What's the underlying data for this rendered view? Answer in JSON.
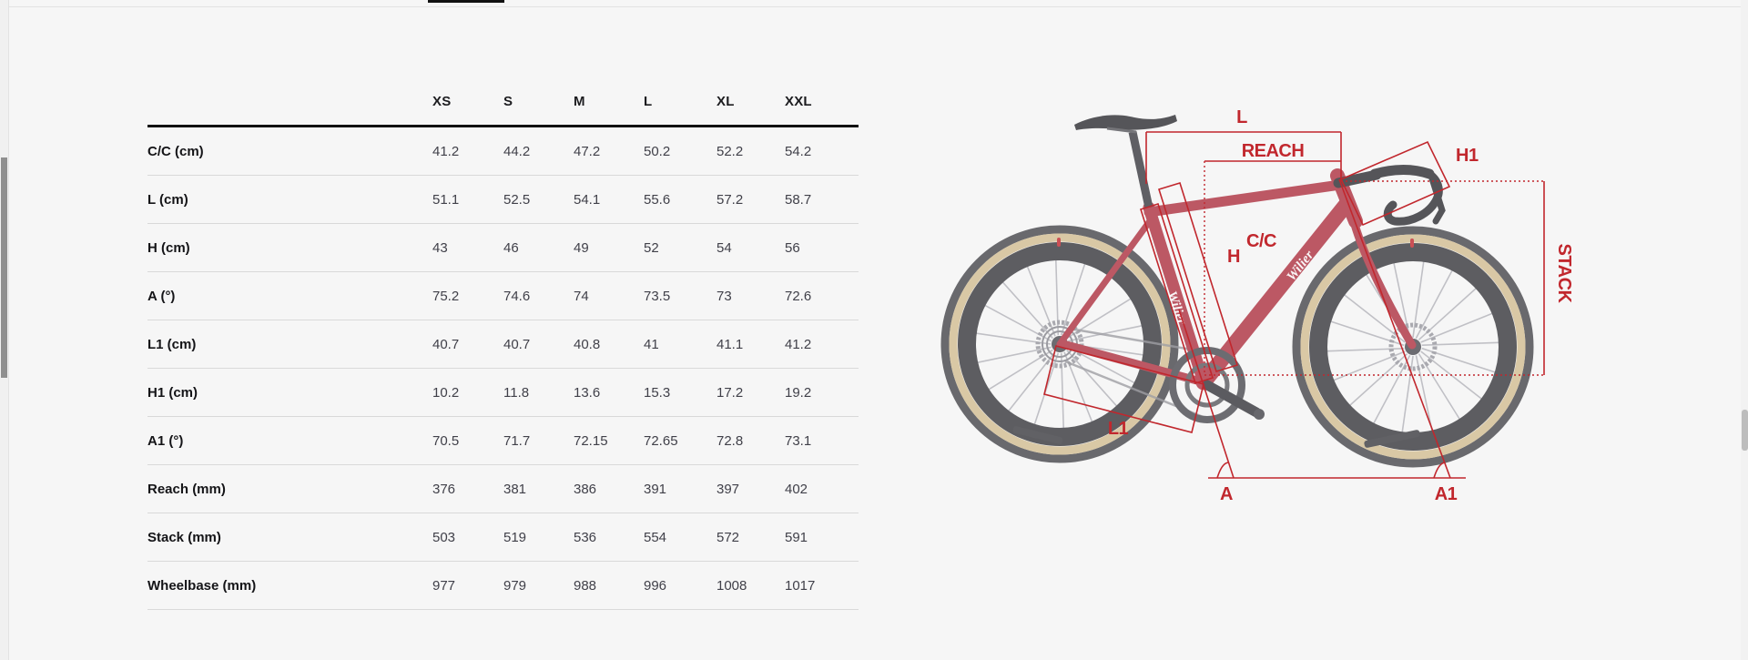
{
  "page": {
    "background": "#f6f6f6",
    "accent_red": "#c1272d",
    "active_tab_underline_color": "#111111"
  },
  "table": {
    "columns": [
      "XS",
      "S",
      "M",
      "L",
      "XL",
      "XXL"
    ],
    "rows": [
      {
        "label": "C/C (cm)",
        "values": [
          "41.2",
          "44.2",
          "47.2",
          "50.2",
          "52.2",
          "54.2"
        ]
      },
      {
        "label": "L (cm)",
        "values": [
          "51.1",
          "52.5",
          "54.1",
          "55.6",
          "57.2",
          "58.7"
        ]
      },
      {
        "label": "H (cm)",
        "values": [
          "43",
          "46",
          "49",
          "52",
          "54",
          "56"
        ]
      },
      {
        "label": "A (°)",
        "values": [
          "75.2",
          "74.6",
          "74",
          "73.5",
          "73",
          "72.6"
        ]
      },
      {
        "label": "L1 (cm)",
        "values": [
          "40.7",
          "40.7",
          "40.8",
          "41",
          "41.1",
          "41.2"
        ]
      },
      {
        "label": "H1 (cm)",
        "values": [
          "10.2",
          "11.8",
          "13.6",
          "15.3",
          "17.2",
          "19.2"
        ]
      },
      {
        "label": "A1 (°)",
        "values": [
          "70.5",
          "71.7",
          "72.15",
          "72.65",
          "72.8",
          "73.1"
        ]
      },
      {
        "label": "Reach (mm)",
        "values": [
          "376",
          "381",
          "386",
          "391",
          "397",
          "402"
        ]
      },
      {
        "label": "Stack (mm)",
        "values": [
          "503",
          "519",
          "536",
          "554",
          "572",
          "591"
        ]
      },
      {
        "label": "Wheelbase (mm)",
        "values": [
          "977",
          "979",
          "988",
          "996",
          "1008",
          "1017"
        ]
      }
    ]
  },
  "diagram": {
    "accent_color": "#c1272d",
    "frame_logo": "Wilier",
    "labels": {
      "top_length": "L",
      "reach": "REACH",
      "head_extension": "H1",
      "seat_tube_cc": "C/C",
      "seat_tube_h": "H",
      "stack": "STACK",
      "chainstay": "L1",
      "seat_angle": "A",
      "head_angle": "A1"
    }
  }
}
